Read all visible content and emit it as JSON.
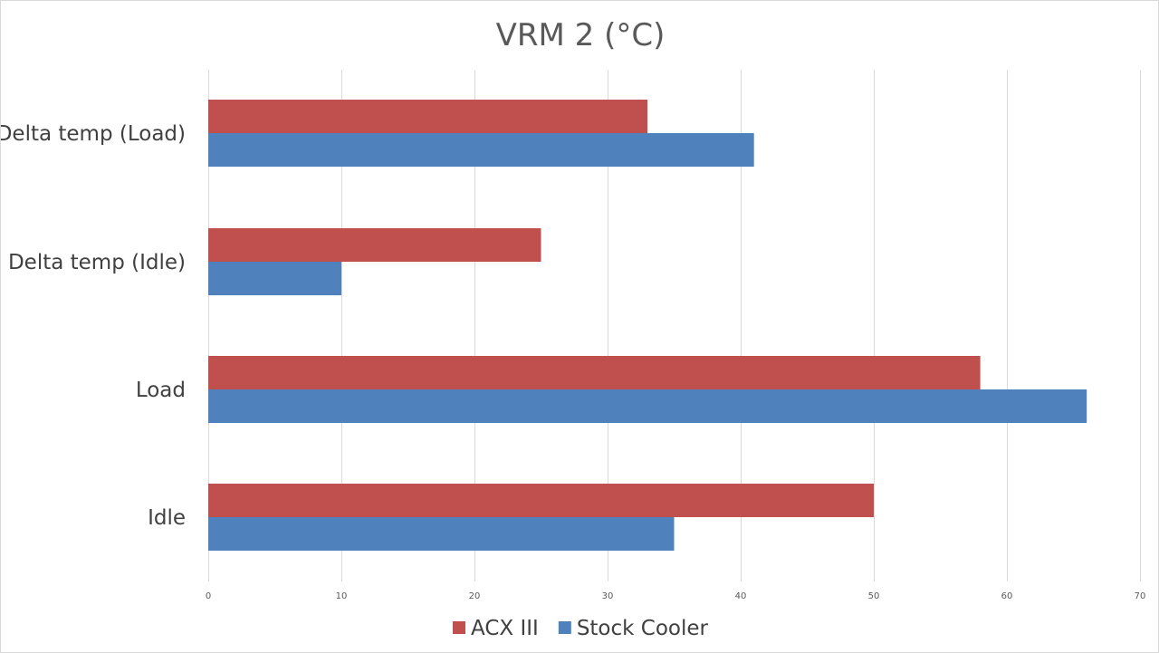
{
  "chart_data": {
    "type": "bar",
    "orientation": "horizontal",
    "title": "VRM 2 (°C)",
    "xlabel": "",
    "ylabel": "",
    "categories": [
      "Idle",
      "Load",
      "Delta temp (Idle)",
      "Delta temp (Load)"
    ],
    "series": [
      {
        "name": "ACX III",
        "color": "#c0504d",
        "values": [
          50,
          58,
          25,
          33
        ]
      },
      {
        "name": "Stock Cooler",
        "color": "#4f81bd",
        "values": [
          35,
          66,
          10,
          41
        ]
      }
    ],
    "xlim": [
      0,
      70
    ],
    "xticks": [
      0,
      10,
      20,
      30,
      40,
      50,
      60,
      70
    ],
    "grid": "vertical",
    "gridColor": "#d9d9d9",
    "legend": "bottom"
  }
}
